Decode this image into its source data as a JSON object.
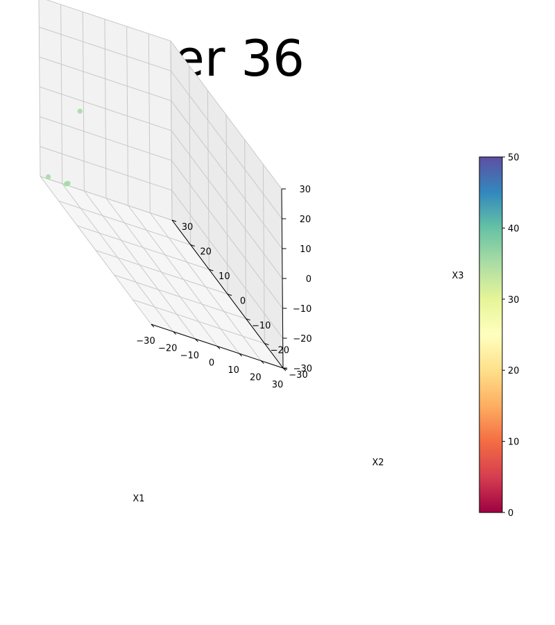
{
  "chart_data": {
    "type": "scatter",
    "subtype": "3d",
    "title": "Iter 36",
    "xlabel": "X1",
    "ylabel": "X2",
    "zlabel": "X3",
    "xlim": [
      -30,
      30
    ],
    "ylim": [
      -30,
      30
    ],
    "zlim": [
      -30,
      30
    ],
    "xticks": [
      "−30",
      "−20",
      "−10",
      "0",
      "10",
      "20",
      "30"
    ],
    "yticks": [
      "−30",
      "−20",
      "−10",
      "0",
      "10",
      "20",
      "30"
    ],
    "zticks": [
      "−30",
      "−20",
      "−10",
      "0",
      "10",
      "20",
      "30"
    ],
    "grid": true,
    "colorbar": {
      "min": 0,
      "max": 50,
      "ticks": [
        "0",
        "10",
        "20",
        "30",
        "40",
        "50"
      ],
      "colormap": "Spectral"
    },
    "points": [
      {
        "x": -30,
        "y": 8,
        "z": 10,
        "c": 35
      },
      {
        "x": -28,
        "y": 28,
        "z": -28,
        "c": 35
      },
      {
        "x": -19,
        "y": 28,
        "z": -28,
        "c": 35
      },
      {
        "x": -19,
        "y": 29,
        "z": -29,
        "c": 35
      }
    ],
    "colors": {
      "pane_back": "#ebebeb",
      "pane_side": "#f2f2f2",
      "pane_floor": "#f6f6f6",
      "grid": "#c8c8c8",
      "axis": "#000000",
      "point": "#a3dca4"
    }
  }
}
